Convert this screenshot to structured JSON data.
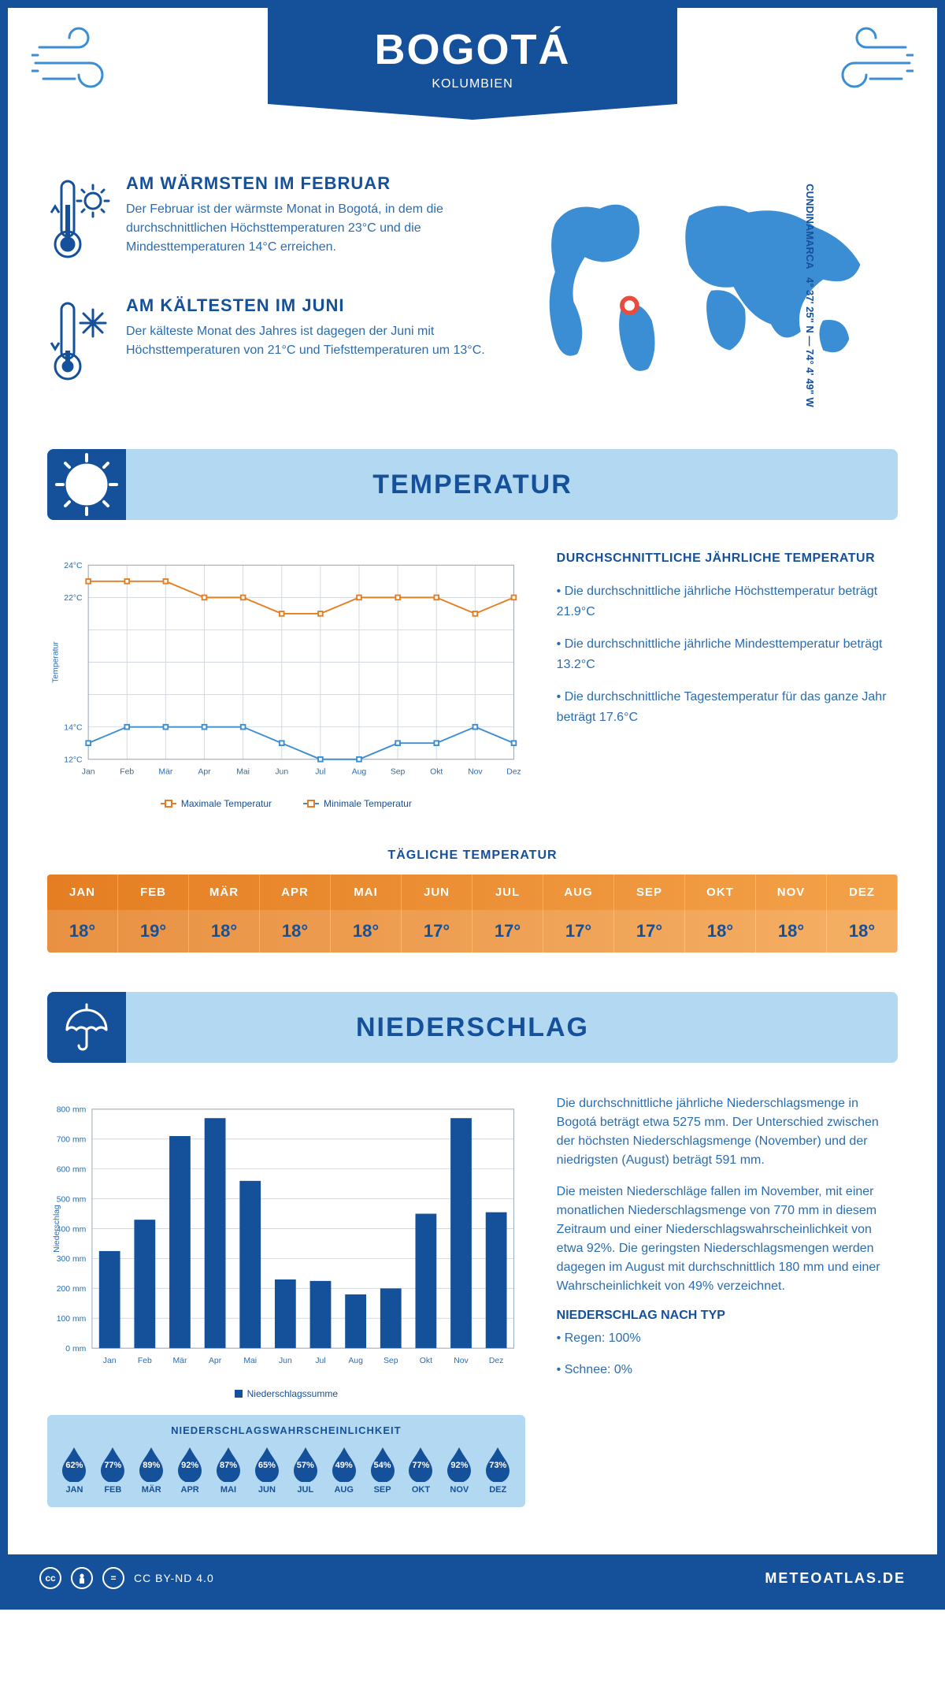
{
  "header": {
    "city": "BOGOTÁ",
    "country": "KOLUMBIEN"
  },
  "coords": {
    "line1": "CUNDINAMARCA",
    "line2": "4° 37' 25\" N — 74° 4' 49\" W"
  },
  "intro": {
    "warm_title": "AM WÄRMSTEN IM FEBRUAR",
    "warm_text": "Der Februar ist der wärmste Monat in Bogotá, in dem die durchschnittlichen Höchsttemperaturen 23°C und die Mindesttemperaturen 14°C erreichen.",
    "cold_title": "AM KÄLTESTEN IM JUNI",
    "cold_text": "Der kälteste Monat des Jahres ist dagegen der Juni mit Höchsttemperaturen von 21°C und Tiefsttemperaturen um 13°C."
  },
  "months": [
    "Jan",
    "Feb",
    "Mär",
    "Apr",
    "Mai",
    "Jun",
    "Jul",
    "Aug",
    "Sep",
    "Okt",
    "Nov",
    "Dez"
  ],
  "months_upper": [
    "JAN",
    "FEB",
    "MÄR",
    "APR",
    "MAI",
    "JUN",
    "JUL",
    "AUG",
    "SEP",
    "OKT",
    "NOV",
    "DEZ"
  ],
  "temp_section": {
    "title": "TEMPERATUR",
    "chart": {
      "type": "line",
      "ylabel": "Temperatur",
      "ylim": [
        12,
        24
      ],
      "yticks": [
        12,
        14,
        16,
        18,
        20,
        22,
        24
      ],
      "ytick_labels": [
        "12°C",
        "14°C",
        "",
        "",
        "",
        "22°C",
        "24°C"
      ],
      "max_series": {
        "values": [
          23,
          23,
          23,
          22,
          22,
          21,
          21,
          22,
          22,
          22,
          21,
          22
        ],
        "color": "#e57e22",
        "label": "Maximale Temperatur"
      },
      "min_series": {
        "values": [
          13,
          14,
          14,
          14,
          14,
          13,
          12,
          12,
          13,
          13,
          14,
          13
        ],
        "color": "#3b8dd4",
        "label": "Minimale Temperatur"
      },
      "grid_color": "#d0d7de",
      "background": "#ffffff"
    },
    "desc_title": "DURCHSCHNITTLICHE JÄHRLICHE TEMPERATUR",
    "bullets": [
      "• Die durchschnittliche jährliche Höchsttemperatur beträgt 21.9°C",
      "• Die durchschnittliche jährliche Mindesttemperatur beträgt 13.2°C",
      "• Die durchschnittliche Tagestemperatur für das ganze Jahr beträgt 17.6°C"
    ],
    "daily_title": "TÄGLICHE TEMPERATUR",
    "daily_values": [
      "18°",
      "19°",
      "18°",
      "18°",
      "18°",
      "17°",
      "17°",
      "17°",
      "17°",
      "18°",
      "18°",
      "18°"
    ],
    "daily_bg_colors": [
      "#e57e22",
      "#f3a24a"
    ],
    "daily_text_color_header": "#ffffff",
    "daily_text_color_value": "#15509b"
  },
  "precip_section": {
    "title": "NIEDERSCHLAG",
    "chart": {
      "type": "bar",
      "ylabel": "Niederschlag",
      "ylim": [
        0,
        800
      ],
      "ytick_step": 100,
      "values": [
        325,
        430,
        710,
        770,
        560,
        230,
        225,
        180,
        200,
        450,
        770,
        455
      ],
      "bar_color": "#15509b",
      "legend": "Niederschlagssumme",
      "grid_color": "#d0d7de",
      "background": "#ffffff",
      "unit": "mm"
    },
    "desc1": "Die durchschnittliche jährliche Niederschlagsmenge in Bogotá beträgt etwa 5275 mm. Der Unterschied zwischen der höchsten Niederschlagsmenge (November) und der niedrigsten (August) beträgt 591 mm.",
    "desc2": "Die meisten Niederschläge fallen im November, mit einer monatlichen Niederschlagsmenge von 770 mm in diesem Zeitraum und einer Niederschlagswahrscheinlichkeit von etwa 92%. Die geringsten Niederschlagsmengen werden dagegen im August mit durchschnittlich 180 mm und einer Wahrscheinlichkeit von 49% verzeichnet.",
    "type_title": "NIEDERSCHLAG NACH TYP",
    "type_bullets": [
      "• Regen: 100%",
      "• Schnee: 0%"
    ],
    "prob_title": "NIEDERSCHLAGSWAHRSCHEINLICHKEIT",
    "prob_values": [
      "62%",
      "77%",
      "89%",
      "92%",
      "87%",
      "65%",
      "57%",
      "49%",
      "54%",
      "77%",
      "92%",
      "73%"
    ],
    "drop_color": "#15509b",
    "prob_bg": "#b3d9f2"
  },
  "colors": {
    "primary": "#15509b",
    "accent_light": "#b3d9f2",
    "accent_blue": "#3b8dd4",
    "orange": "#e57e22",
    "text": "#2b6cb0"
  },
  "footer": {
    "license": "CC BY-ND 4.0",
    "site": "METEOATLAS.DE"
  }
}
